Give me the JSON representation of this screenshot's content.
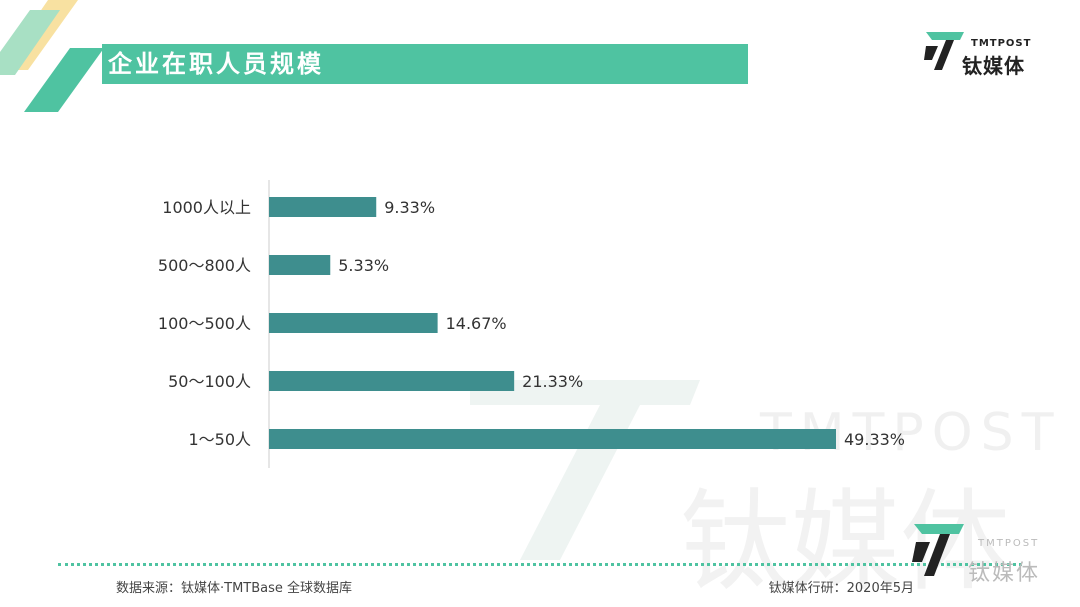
{
  "title": "企业在职人员规模",
  "brand": {
    "en": "TMTPOST",
    "cn": "钛媒体"
  },
  "colors": {
    "accent": "#4fc3a1",
    "bar": "#3e8e8e"
  },
  "footer": {
    "source": "数据来源：钛媒体·TMTBase 全球数据库",
    "credit": "钛媒体行研：2020年5月"
  },
  "chart_data": {
    "type": "bar",
    "orientation": "horizontal",
    "categories": [
      "1000人以上",
      "500～800人",
      "100～500人",
      "50～100人",
      "1～50人"
    ],
    "values": [
      9.33,
      5.33,
      14.67,
      21.33,
      49.33
    ],
    "value_labels": [
      "9.33%",
      "5.33%",
      "14.67%",
      "21.33%",
      "49.33%"
    ],
    "title": "企业在职人员规模",
    "xlim": [
      0,
      50
    ],
    "grid": false,
    "legend": "none"
  }
}
